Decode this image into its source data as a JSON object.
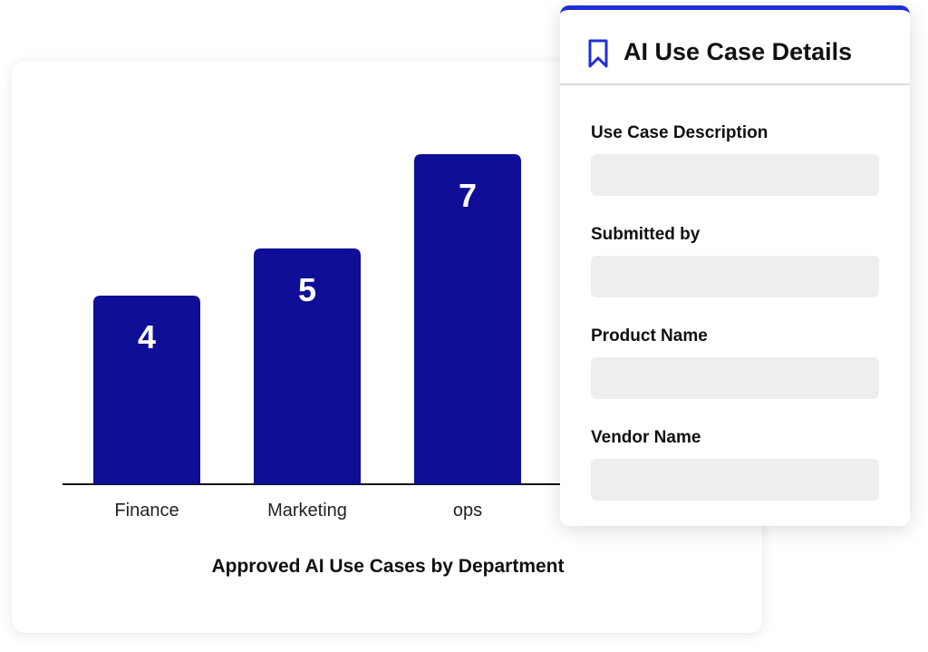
{
  "chart_data": {
    "type": "bar",
    "title": "Approved AI Use Cases by Department",
    "categories": [
      "Finance",
      "Marketing",
      "ops"
    ],
    "values": [
      4,
      5,
      7
    ],
    "ylim": [
      0,
      7
    ],
    "grid": false,
    "bar_color": "#0e0e96",
    "label_color": "#ffffff"
  },
  "panel": {
    "title": "AI Use Case Details",
    "icon": "bookmark-icon",
    "accent_color": "#1f2fd6",
    "fields": [
      {
        "label": "Use Case Description",
        "value": ""
      },
      {
        "label": "Submitted by",
        "value": ""
      },
      {
        "label": "Product Name",
        "value": ""
      },
      {
        "label": "Vendor Name",
        "value": ""
      }
    ]
  }
}
